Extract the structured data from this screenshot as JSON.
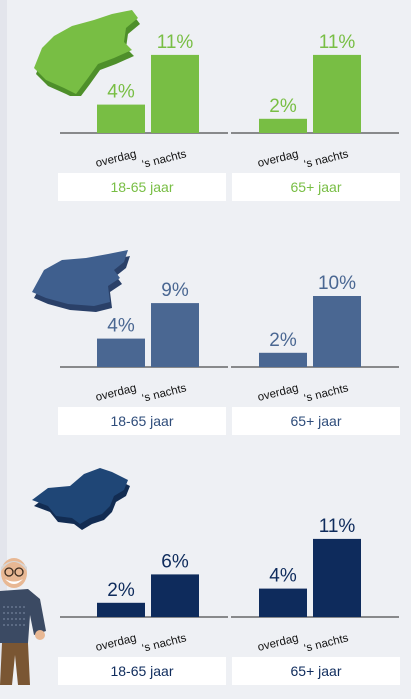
{
  "chart_data": [
    {
      "type": "bar",
      "color": "#78be44",
      "groups": [
        {
          "label": "18-65 jaar",
          "categories": [
            "overdag",
            "‘s nachts"
          ],
          "values": [
            4,
            11
          ],
          "value_labels": [
            "4%",
            "11%"
          ]
        },
        {
          "label": "65+ jaar",
          "categories": [
            "overdag",
            "‘s nachts"
          ],
          "values": [
            2,
            11
          ],
          "value_labels": [
            "2%",
            "11%"
          ]
        }
      ]
    },
    {
      "type": "bar",
      "color": "#4a6792",
      "groups": [
        {
          "label": "18-65 jaar",
          "categories": [
            "overdag",
            "‘s nachts"
          ],
          "values": [
            4,
            9
          ],
          "value_labels": [
            "4%",
            "9%"
          ]
        },
        {
          "label": "65+ jaar",
          "categories": [
            "overdag",
            "‘s nachts"
          ],
          "values": [
            2,
            10
          ],
          "value_labels": [
            "2%",
            "10%"
          ]
        }
      ]
    },
    {
      "type": "bar",
      "color": "#0e2b5c",
      "groups": [
        {
          "label": "18-65 jaar",
          "categories": [
            "overdag",
            "‘s nachts"
          ],
          "values": [
            2,
            6
          ],
          "value_labels": [
            "2%",
            "6%"
          ]
        },
        {
          "label": "65+ jaar",
          "categories": [
            "overdag",
            "‘s nachts"
          ],
          "values": [
            4,
            11
          ],
          "value_labels": [
            "4%",
            "11%"
          ]
        }
      ]
    }
  ],
  "icons": {
    "map": "netherlands-map-icon",
    "person": "elderly-man-illustration"
  },
  "colors": {
    "label_text": [
      "#78be44",
      "#2e4c7a",
      "#0e2b5c"
    ],
    "map_fill": [
      "#78be44",
      "#3f5f8e",
      "#1f4676"
    ],
    "map_side": [
      "#4e8f2a",
      "#2a4068",
      "#122c52"
    ]
  }
}
